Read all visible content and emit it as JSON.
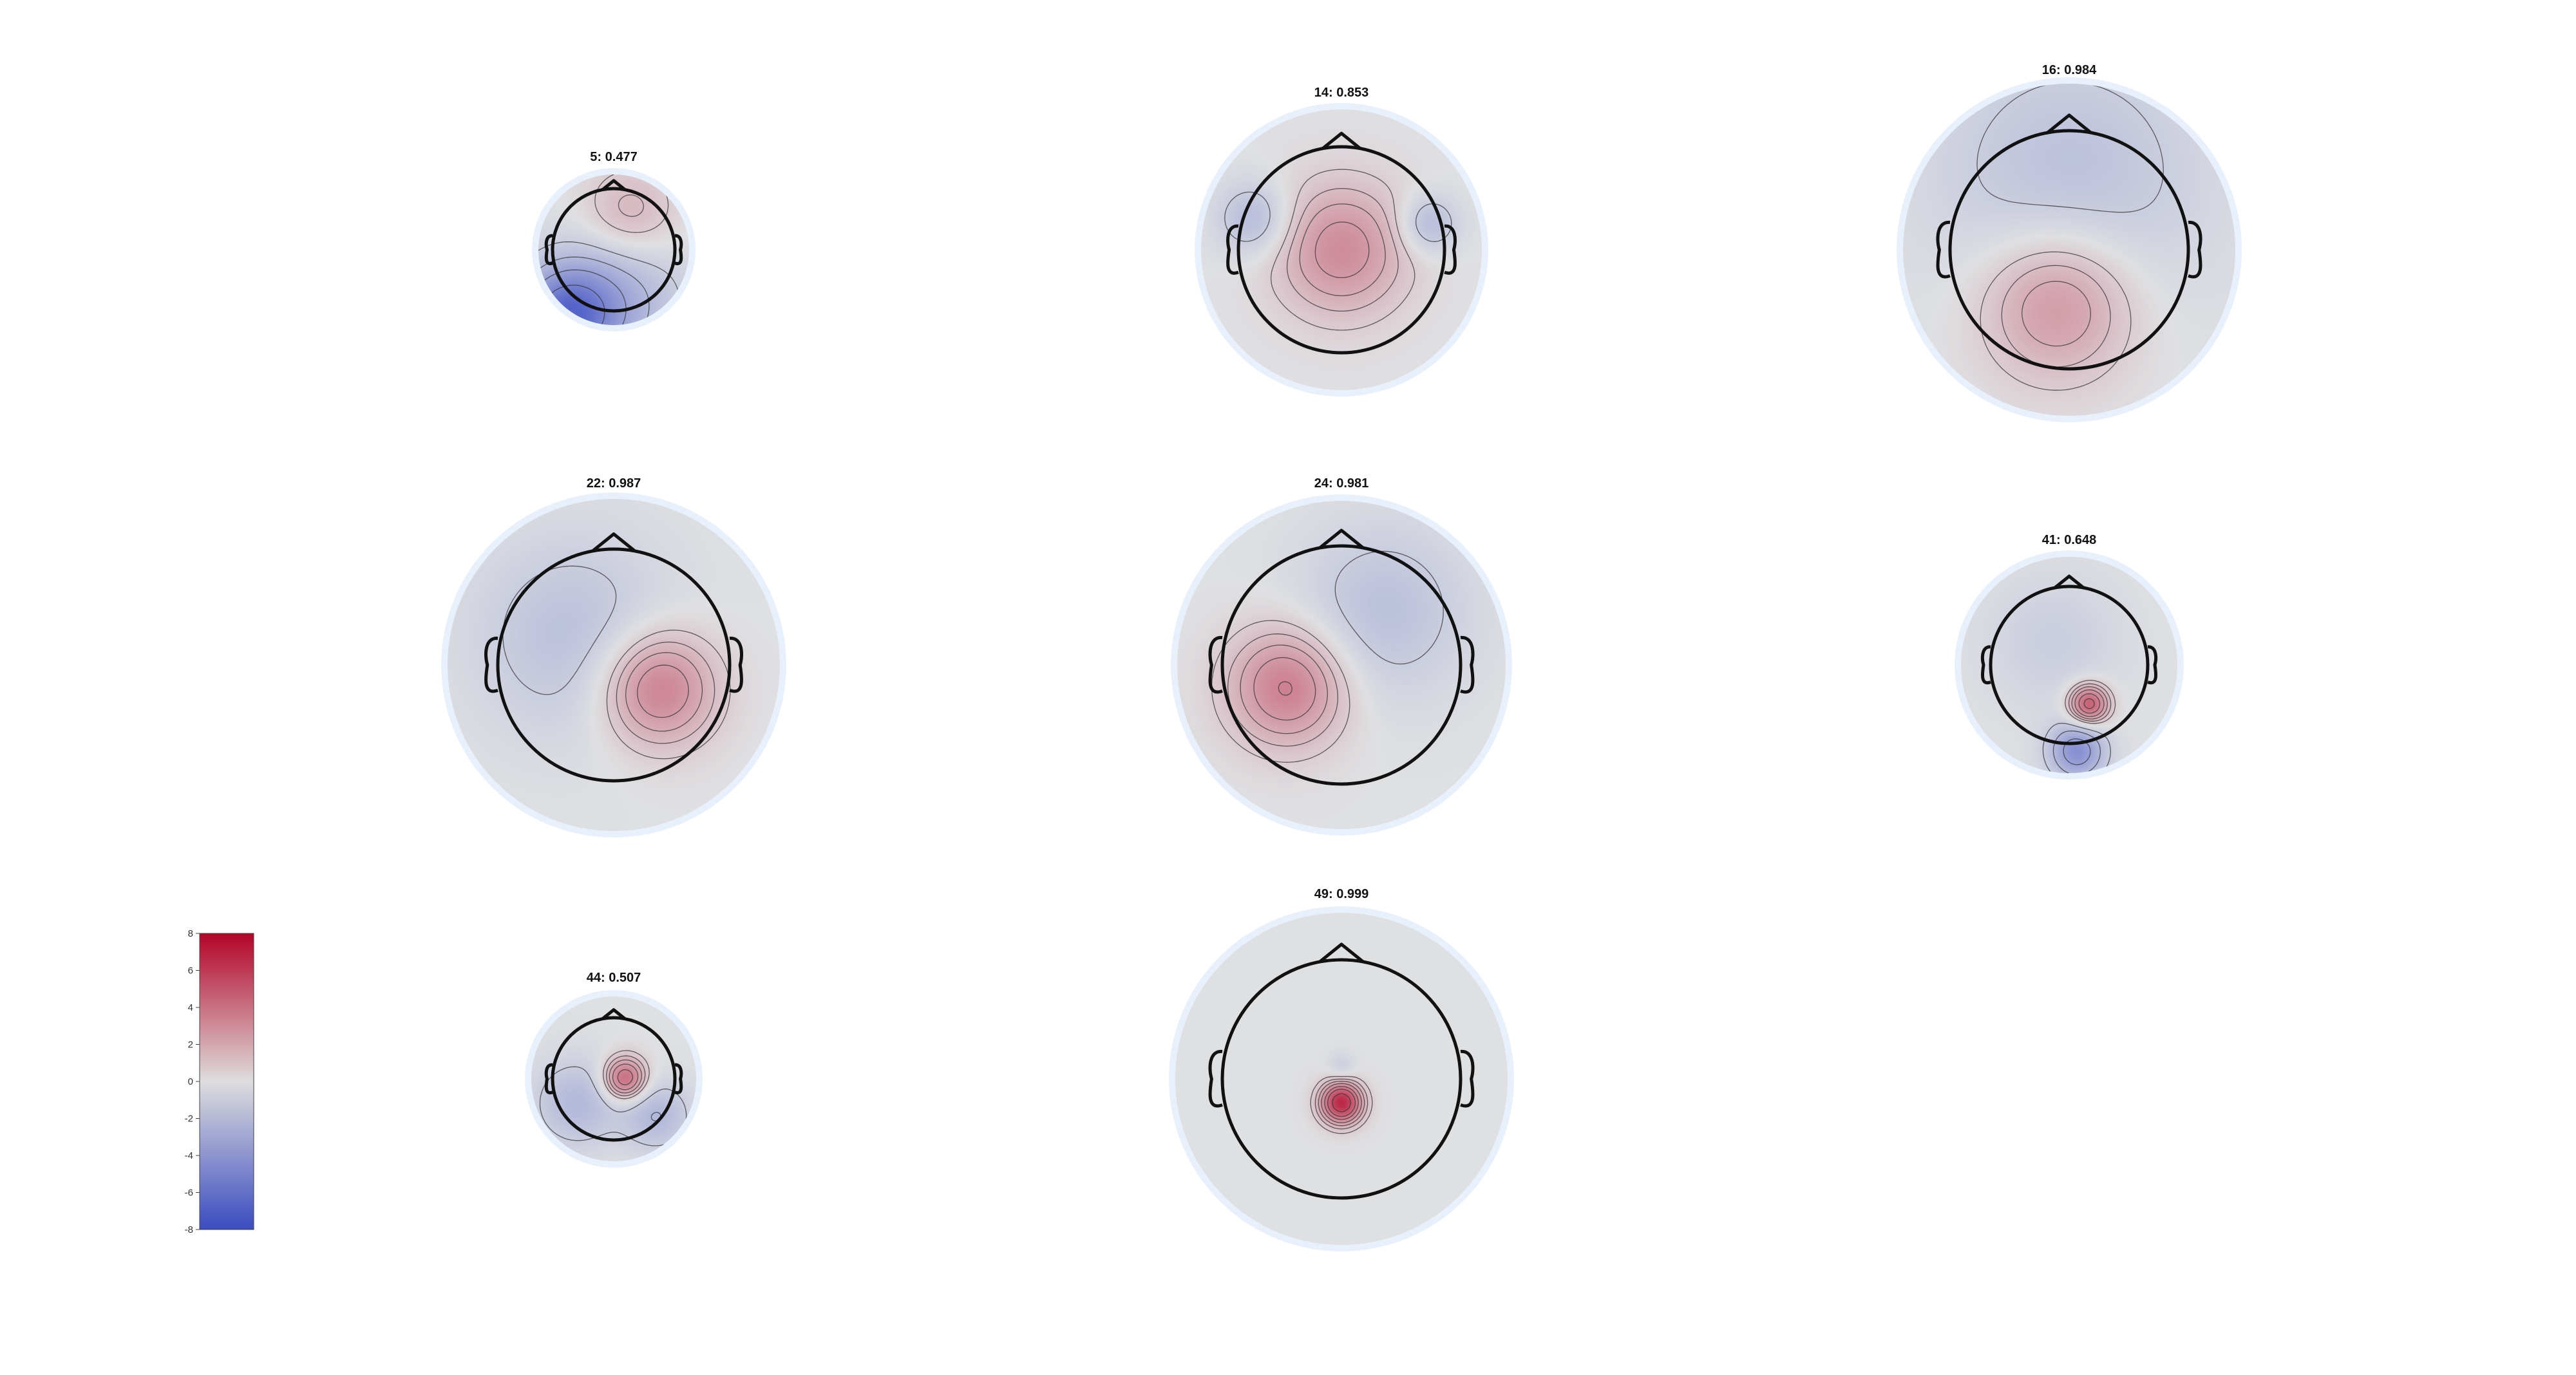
{
  "chart_data": {
    "type": "heatmap",
    "description_type": "topographic",
    "colormap": {
      "name": "coolwarm",
      "min": -8,
      "max": 8,
      "ticks": [
        8,
        6,
        4,
        2,
        0,
        -2,
        -4,
        -6,
        -8
      ],
      "low_color": "#3b4cc0",
      "mid_color": "#dddddd",
      "high_color": "#b40426"
    },
    "maps": [
      {
        "label": "5: 0.477",
        "component": 5,
        "score": 0.477,
        "blobs": [
          {
            "x": 0.25,
            "y": 0.55,
            "amp": 2.2,
            "s": 0.55
          },
          {
            "x": -0.8,
            "y": -1.1,
            "amp": -6.5,
            "s": 0.55
          },
          {
            "x": 0.0,
            "y": -0.8,
            "amp": -3.0,
            "s": 0.8
          }
        ]
      },
      {
        "label": "14: 0.853",
        "component": 14,
        "score": 0.853,
        "blobs": [
          {
            "x": 0.0,
            "y": 0.0,
            "amp": 3.6,
            "s": 0.45
          },
          {
            "x": -0.85,
            "y": 0.3,
            "amp": -2.5,
            "s": 0.25
          },
          {
            "x": 0.85,
            "y": 0.25,
            "amp": -2.5,
            "s": 0.2
          }
        ]
      },
      {
        "label": "16: 0.984",
        "component": 16,
        "score": 0.984,
        "blobs": [
          {
            "x": -0.1,
            "y": -0.45,
            "amp": 3.6,
            "s": 0.45
          },
          {
            "x": 0.0,
            "y": 0.6,
            "amp": -2.0,
            "s": 0.8
          }
        ]
      },
      {
        "label": "22: 0.987",
        "component": 22,
        "score": 0.987,
        "blobs": [
          {
            "x": 0.38,
            "y": -0.2,
            "amp": 4.5,
            "s": 0.35
          },
          {
            "x": -0.35,
            "y": 0.25,
            "amp": -2.0,
            "s": 0.6
          }
        ]
      },
      {
        "label": "24: 0.981",
        "component": 24,
        "score": 0.981,
        "blobs": [
          {
            "x": -0.45,
            "y": -0.18,
            "amp": 4.3,
            "s": 0.35
          },
          {
            "x": 0.35,
            "y": 0.45,
            "amp": -2.0,
            "s": 0.5
          }
        ]
      },
      {
        "label": "41: 0.648",
        "component": 41,
        "score": 0.648,
        "blobs": [
          {
            "x": 0.25,
            "y": -0.5,
            "amp": 6.0,
            "s": 0.18
          },
          {
            "x": 0.1,
            "y": -1.1,
            "amp": -5.0,
            "s": 0.25
          },
          {
            "x": -0.2,
            "y": 0.3,
            "amp": -1.2,
            "s": 0.6
          }
        ]
      },
      {
        "label": "44: 0.507",
        "component": 44,
        "score": 0.507,
        "blobs": [
          {
            "x": 0.18,
            "y": 0.0,
            "amp": 5.5,
            "s": 0.25
          },
          {
            "x": -0.6,
            "y": -0.4,
            "amp": -2.5,
            "s": 0.5
          },
          {
            "x": 0.7,
            "y": -0.6,
            "amp": -2.5,
            "s": 0.4
          }
        ]
      },
      {
        "label": "49: 0.999",
        "component": 49,
        "score": 0.999,
        "blobs": [
          {
            "x": 0.0,
            "y": -0.2,
            "amp": 8.0,
            "s": 0.12
          },
          {
            "x": 0.0,
            "y": 0.1,
            "amp": -1.2,
            "s": 0.08
          }
        ]
      }
    ]
  }
}
